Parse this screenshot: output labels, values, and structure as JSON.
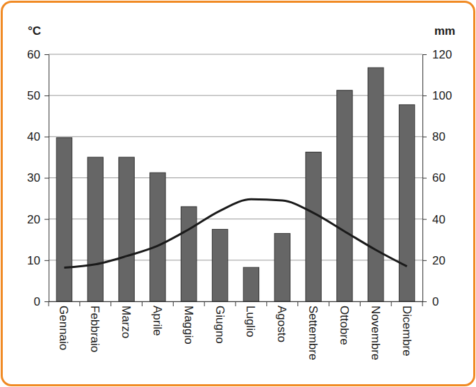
{
  "chart_data": {
    "type": "bar",
    "y_label": "°C",
    "y2_label": "mm",
    "categories": [
      "Gennaio",
      "Febbraio",
      "Marzo",
      "Aprile",
      "Maggio",
      "Giugno",
      "Luglio",
      "Agosto",
      "Settembre",
      "Ottobre",
      "Novembre",
      "Dicembre"
    ],
    "series": [
      {
        "type": "bar",
        "axis": "y2",
        "color": "#666666",
        "values": [
          79.5,
          70,
          70,
          62.5,
          46,
          35,
          16.5,
          33,
          72.5,
          102.5,
          113.5,
          95.5
        ]
      },
      {
        "type": "line",
        "color": "#1a1a1a",
        "values": [
          8.2,
          9,
          11,
          13.5,
          17.5,
          22,
          24.8,
          24.5,
          21.5,
          17,
          12.5,
          8.5
        ]
      }
    ],
    "ylim": [
      0,
      60
    ],
    "yticks": [
      0,
      10,
      20,
      30,
      40,
      50,
      60
    ],
    "y2lim": [
      0,
      120
    ],
    "y2ticks": [
      0,
      20,
      40,
      60,
      80,
      100,
      120
    ],
    "grid": true
  }
}
